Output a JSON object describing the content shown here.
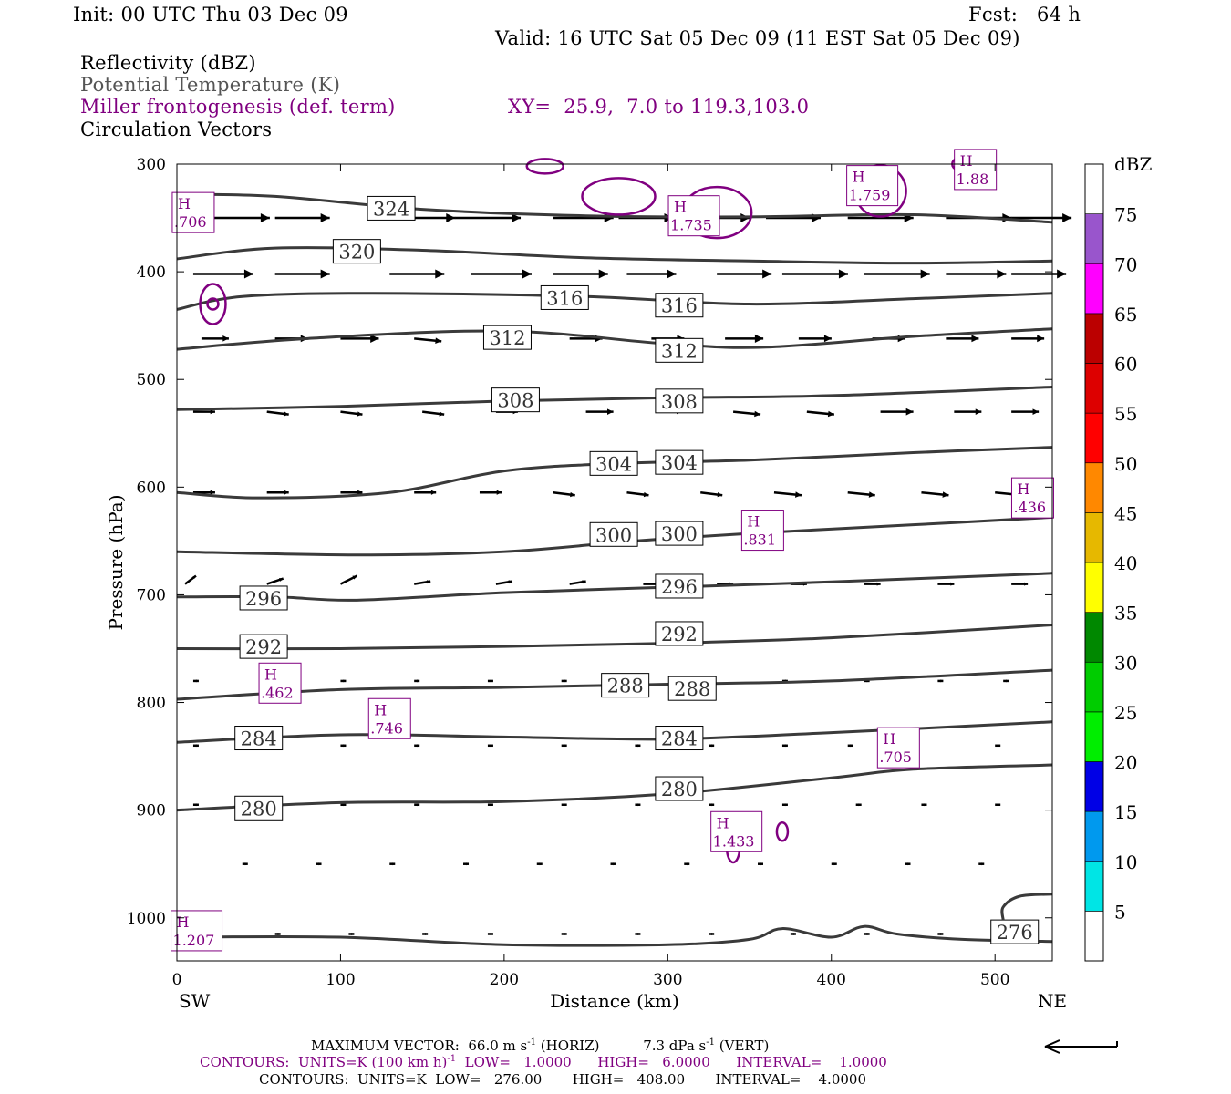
{
  "header": {
    "init": "Init: 00 UTC Thu 03 Dec 09",
    "fcst": "Fcst:   64 h",
    "valid": "Valid: 16 UTC Sat 05 Dec 09 (11 EST Sat 05 Dec 09)",
    "fields": [
      "Reflectivity (dBZ)",
      "Potential Temperature (K)",
      "Miller frontogenesis (def. term)",
      "Circulation Vectors"
    ],
    "xy": "XY=  25.9,  7.0 to 119.3,103.0"
  },
  "colors": {
    "theta": "#3a3a3a",
    "fronto": "#800080",
    "text": "#000000"
  },
  "chart_data": {
    "type": "contour",
    "xlabel": "Distance (km)",
    "ylabel": "Pressure (hPa)",
    "xlim": [
      0,
      535
    ],
    "ylim": [
      300,
      1040
    ],
    "x_ticks": [
      0,
      100,
      200,
      300,
      400,
      500
    ],
    "y_ticks": [
      300,
      400,
      500,
      600,
      700,
      800,
      900,
      1000
    ],
    "x_end_labels": {
      "left": "SW",
      "right": "NE"
    },
    "theta_contours": [
      {
        "label": "324",
        "x": [
          0,
          60,
          150,
          250,
          350,
          450,
          535
        ],
        "p": [
          328,
          330,
          342,
          348,
          349,
          347,
          354
        ],
        "labels_at": [
          [
            131,
            341
          ]
        ]
      },
      {
        "label": "320",
        "x": [
          0,
          60,
          150,
          250,
          350,
          450,
          535
        ],
        "p": [
          388,
          378,
          380,
          387,
          390,
          392,
          390
        ],
        "labels_at": [
          [
            110,
            381
          ]
        ]
      },
      {
        "label": "316",
        "x": [
          0,
          40,
          120,
          250,
          350,
          450,
          535
        ],
        "p": [
          435,
          423,
          420,
          423,
          430,
          425,
          420
        ],
        "labels_at": [
          [
            237,
            424
          ],
          [
            307,
            431
          ]
        ]
      },
      {
        "label": "312",
        "x": [
          0,
          80,
          200,
          300,
          360,
          450,
          535
        ],
        "p": [
          472,
          462,
          455,
          467,
          470,
          460,
          453
        ],
        "labels_at": [
          [
            202,
            461
          ],
          [
            307,
            473
          ]
        ]
      },
      {
        "label": "308",
        "x": [
          0,
          100,
          200,
          300,
          400,
          535
        ],
        "p": [
          528,
          525,
          520,
          517,
          515,
          507
        ],
        "labels_at": [
          [
            207,
            519
          ],
          [
            307,
            520
          ]
        ]
      },
      {
        "label": "304",
        "x": [
          0,
          50,
          130,
          200,
          270,
          350,
          450,
          535
        ],
        "p": [
          605,
          610,
          605,
          585,
          578,
          575,
          568,
          563
        ],
        "labels_at": [
          [
            267,
            578
          ],
          [
            307,
            577
          ]
        ]
      },
      {
        "label": "300",
        "x": [
          0,
          110,
          200,
          280,
          350,
          450,
          535
        ],
        "p": [
          660,
          663,
          660,
          650,
          643,
          635,
          628
        ],
        "labels_at": [
          [
            267,
            644
          ],
          [
            307,
            643
          ]
        ]
      },
      {
        "label": "296",
        "x": [
          0,
          60,
          110,
          200,
          300,
          400,
          535
        ],
        "p": [
          702,
          702,
          705,
          698,
          693,
          688,
          680
        ],
        "labels_at": [
          [
            53,
            703
          ],
          [
            307,
            692
          ]
        ]
      },
      {
        "label": "292",
        "x": [
          0,
          100,
          200,
          300,
          400,
          535
        ],
        "p": [
          750,
          750,
          748,
          745,
          740,
          728
        ],
        "labels_at": [
          [
            53,
            748
          ],
          [
            307,
            736
          ]
        ]
      },
      {
        "label": "288",
        "x": [
          0,
          100,
          200,
          300,
          400,
          535
        ],
        "p": [
          797,
          788,
          786,
          783,
          780,
          770
        ],
        "labels_at": [
          [
            274,
            784
          ],
          [
            315,
            787
          ]
        ]
      },
      {
        "label": "284",
        "x": [
          0,
          100,
          200,
          300,
          400,
          535
        ],
        "p": [
          837,
          830,
          832,
          834,
          828,
          818
        ],
        "labels_at": [
          [
            50,
            833
          ],
          [
            307,
            833
          ]
        ]
      },
      {
        "label": "280",
        "x": [
          0,
          100,
          200,
          300,
          400,
          450,
          535
        ],
        "p": [
          900,
          893,
          892,
          885,
          870,
          862,
          858
        ],
        "labels_at": [
          [
            50,
            898
          ],
          [
            307,
            880
          ]
        ]
      },
      {
        "label": "276",
        "x": [
          0,
          100,
          200,
          300,
          350,
          370,
          400,
          420,
          440,
          480,
          535
        ],
        "p": [
          1018,
          1018,
          1025,
          1025,
          1020,
          1010,
          1018,
          1008,
          1015,
          1020,
          1022
        ],
        "labels_at": [
          [
            512,
            1013
          ]
        ]
      }
    ],
    "surface_extra_276": {
      "x": [
        505,
        505,
        515,
        535
      ],
      "p": [
        1002,
        990,
        980,
        978
      ]
    },
    "fronto_highs": [
      {
        "label": "H",
        "value": "1.88",
        "x": 488,
        "p": 305
      },
      {
        "label": "H",
        "value": "1.759",
        "x": 425,
        "p": 320
      },
      {
        "label": "H",
        "value": "1.735",
        "x": 316,
        "p": 348
      },
      {
        "label": "H",
        "value": ".706",
        "x": 10,
        "p": 345
      },
      {
        "label": "H",
        "value": ".436",
        "x": 523,
        "p": 610
      },
      {
        "label": "H",
        "value": ".831",
        "x": 358,
        "p": 640
      },
      {
        "label": "H",
        "value": ".462",
        "x": 63,
        "p": 782
      },
      {
        "label": "H",
        "value": ".746",
        "x": 130,
        "p": 815
      },
      {
        "label": "H",
        "value": ".705",
        "x": 441,
        "p": 842
      },
      {
        "label": "H",
        "value": "1.433",
        "x": 342,
        "p": 920
      },
      {
        "label": "H",
        "value": "1.207",
        "x": 12,
        "p": 1012
      }
    ],
    "vector_rows": [
      {
        "p": 350,
        "x": [
          20,
          60,
          130,
          170,
          230,
          270,
          310,
          360,
          410,
          470,
          510
        ],
        "u": [
          1.1,
          1.0,
          1.2,
          1.2,
          1.1,
          1.0,
          1.2,
          1.0,
          1.2,
          1.2,
          1.1
        ],
        "w": [
          0,
          0,
          0,
          0,
          0,
          0,
          0,
          0,
          0,
          0,
          0
        ]
      },
      {
        "p": 402,
        "x": [
          10,
          60,
          130,
          180,
          230,
          275,
          330,
          370,
          420,
          470,
          510
        ],
        "u": [
          1.1,
          1.0,
          1.0,
          1.1,
          1.0,
          0.9,
          1.0,
          1.2,
          1.2,
          1.1,
          1.0
        ],
        "w": [
          0,
          0,
          0,
          0,
          0,
          0,
          0,
          0,
          0,
          0,
          0
        ]
      },
      {
        "p": 462,
        "x": [
          15,
          60,
          100,
          145,
          190,
          240,
          290,
          335,
          380,
          425,
          470,
          510
        ],
        "u": [
          0.5,
          0.6,
          0.7,
          0.5,
          0.6,
          0.6,
          0.6,
          0.7,
          0.6,
          0.6,
          0.6,
          0.6
        ],
        "w": [
          0,
          0,
          0,
          1,
          0,
          0,
          0,
          0,
          0,
          0,
          0,
          0
        ]
      },
      {
        "p": 530,
        "x": [
          10,
          55,
          100,
          150,
          195,
          250,
          295,
          340,
          385,
          430,
          475,
          510
        ],
        "u": [
          0.4,
          0.4,
          0.4,
          0.4,
          0.4,
          0.5,
          0.4,
          0.5,
          0.5,
          0.6,
          0.5,
          0.5
        ],
        "w": [
          0,
          1,
          1,
          1,
          0,
          0,
          0,
          1,
          1,
          0,
          0,
          0
        ]
      },
      {
        "p": 605,
        "x": [
          10,
          55,
          100,
          145,
          185,
          230,
          275,
          320,
          365,
          410,
          455,
          500
        ],
        "u": [
          0.4,
          0.4,
          0.4,
          0.4,
          0.4,
          0.4,
          0.4,
          0.4,
          0.5,
          0.5,
          0.5,
          0.5
        ],
        "w": [
          0,
          0,
          0,
          0,
          0,
          1,
          1,
          1,
          1,
          1,
          1,
          1
        ]
      },
      {
        "p": 690,
        "x": [
          5,
          55,
          100,
          145,
          195,
          240,
          285,
          330,
          375,
          420,
          465,
          510
        ],
        "u": [
          0.2,
          0.3,
          0.3,
          0.3,
          0.3,
          0.3,
          0.3,
          0.3,
          0.3,
          0.3,
          0.3,
          0.3
        ],
        "w": [
          -3,
          -2,
          -3,
          -1,
          -1,
          -1,
          0,
          0,
          0,
          0,
          0,
          0
        ]
      },
      {
        "p": 780,
        "x": [
          10,
          55,
          100,
          145,
          190,
          235,
          280,
          325,
          370,
          420,
          465,
          505
        ],
        "u": [
          0.1,
          0.1,
          0.1,
          0.1,
          0.1,
          0.1,
          0.1,
          0.1,
          0.1,
          0.1,
          0.1,
          0.1
        ],
        "w": [
          0,
          0,
          0,
          0,
          0,
          0,
          0,
          0,
          0,
          0,
          0,
          0
        ]
      },
      {
        "p": 840,
        "x": [
          10,
          55,
          100,
          145,
          190,
          235,
          280,
          325,
          370,
          410,
          450,
          500
        ],
        "u": [
          0.1,
          0.1,
          0.1,
          0.1,
          0.1,
          0.1,
          0.1,
          0.1,
          0.1,
          0.1,
          0.1,
          0.1
        ],
        "w": [
          0,
          0,
          0,
          0,
          0,
          0,
          0,
          0,
          0,
          0,
          0,
          0
        ]
      },
      {
        "p": 895,
        "x": [
          10,
          55,
          100,
          145,
          190,
          235,
          280,
          325,
          370,
          415,
          455,
          500
        ],
        "u": [
          0.1,
          0.1,
          0.1,
          0.1,
          0.1,
          0.1,
          0.1,
          0.1,
          0.1,
          0.1,
          0.1,
          0.1
        ],
        "w": [
          0,
          0,
          0,
          0,
          0,
          0,
          0,
          0,
          0,
          0,
          0,
          0
        ]
      },
      {
        "p": 950,
        "x": [
          40,
          85,
          130,
          175,
          220,
          265,
          310,
          355,
          400,
          445,
          490
        ],
        "u": [
          0.1,
          0.1,
          0.1,
          0.1,
          0.1,
          0.1,
          0.1,
          0.1,
          0.1,
          0.1,
          0.1
        ],
        "w": [
          0,
          0,
          0,
          0,
          0,
          0,
          0,
          0,
          0,
          0,
          0
        ]
      },
      {
        "p": 1015,
        "x": [
          10,
          60,
          105,
          150,
          190,
          235,
          280,
          325,
          375,
          420,
          465,
          505
        ],
        "u": [
          0.1,
          0.1,
          0.1,
          0.1,
          0.1,
          0.1,
          0.1,
          0.1,
          0.1,
          0.1,
          0.1,
          0.1
        ],
        "w": [
          0,
          0,
          0,
          0,
          0,
          0,
          0,
          0,
          0,
          0,
          0,
          0
        ]
      }
    ],
    "colorbar": {
      "title": "dBZ",
      "levels": [
        "5",
        "10",
        "15",
        "20",
        "25",
        "30",
        "35",
        "40",
        "45",
        "50",
        "55",
        "60",
        "65",
        "70",
        "75"
      ],
      "colors": [
        "#ffffff",
        "#00e5e5",
        "#0099ee",
        "#0000e6",
        "#00ee00",
        "#00cc00",
        "#008800",
        "#ffff00",
        "#e6b800",
        "#ff8800",
        "#ff0000",
        "#dd0000",
        "#bb0000",
        "#ff00ff",
        "#9955cc",
        "#ffffff"
      ]
    }
  },
  "footer": {
    "max_vector_label": "MAXIMUM VECTOR:  66.0 m s",
    "max_vector_horiz": "(HORIZ)",
    "max_vector_vert": "7.3 dPa s",
    "max_vector_vert_tail": "(VERT)",
    "contours_purple": "CONTOURS:  UNITS=K (100 km h)",
    "contours_purple_tail": "LOW=   1.0000      HIGH=   6.0000      INTERVAL=    1.0000",
    "contours_black": "CONTOURS:  UNITS=K  LOW=   276.00       HIGH=   408.00       INTERVAL=    4.0000",
    "exp": "-1"
  }
}
